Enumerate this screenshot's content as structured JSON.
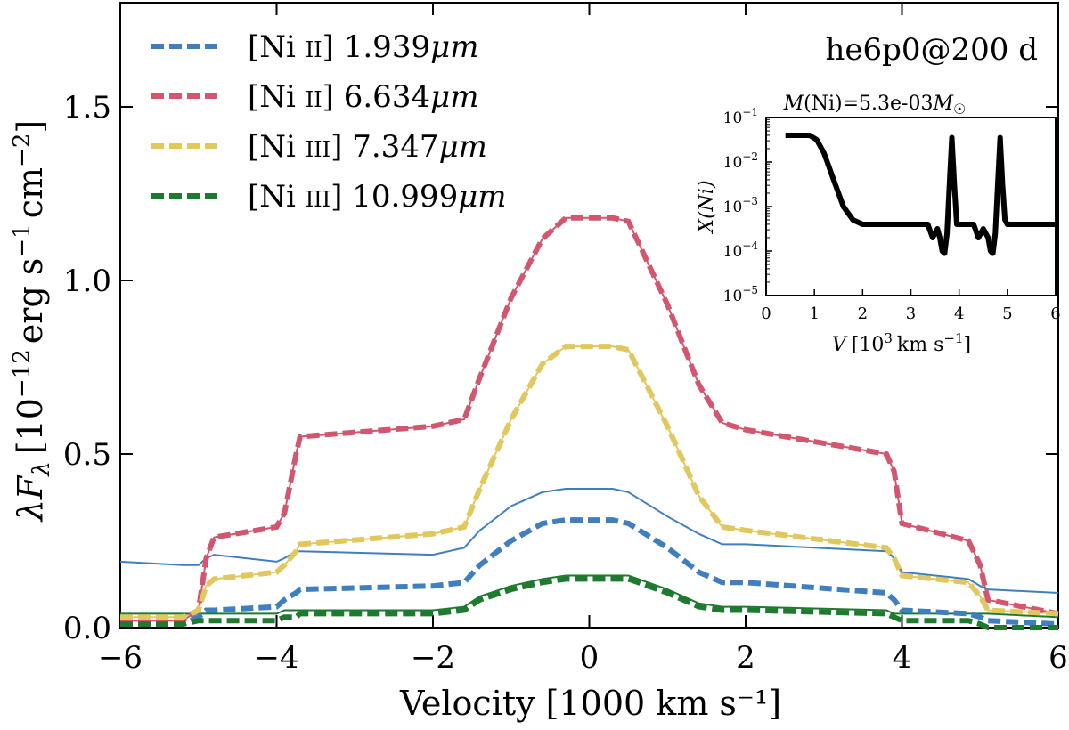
{
  "chart_data": [
    {
      "type": "line",
      "title": "he6p0@200 d",
      "xlabel": "Velocity [1000 km s⁻¹]",
      "ylabel": "λF",
      "ylabel_sub": "λ",
      "ylabel_units": "[10",
      "ylabel_exp1": "−12",
      "ylabel_erg": "erg s",
      "ylabel_exp2": "−1",
      "ylabel_cm": "cm",
      "ylabel_exp3": "−2",
      "ylabel_close": "]",
      "xlim": [
        -6,
        6
      ],
      "ylim": [
        0,
        1.8
      ],
      "xticks": [
        -6,
        -4,
        -2,
        0,
        2,
        4,
        6
      ],
      "xtick_labels": [
        "−6",
        "−4",
        "−2",
        "0",
        "2",
        "4",
        "6"
      ],
      "yticks": [
        0.0,
        0.5,
        1.0,
        1.5
      ],
      "ytick_labels": [
        "0.0",
        "0.5",
        "1.0",
        "1.5"
      ],
      "legend_position": "top-left",
      "series": [
        {
          "name": "[Ni II] 6.634μm",
          "legend_ion": "[Ni",
          "legend_stage": "II",
          "legend_rest": "] 6.634",
          "legend_unit": "μm",
          "color": "#d1566e",
          "x": [
            -6,
            -5.2,
            -5.0,
            -4.9,
            -4.8,
            -4.0,
            -3.9,
            -3.75,
            -3.7,
            -2.0,
            -1.6,
            -1.4,
            -1.0,
            -0.6,
            -0.3,
            0.3,
            0.5,
            1.0,
            1.4,
            1.7,
            2.0,
            3.8,
            3.9,
            4.0,
            4.85,
            5.0,
            5.1,
            6
          ],
          "values": [
            0.02,
            0.02,
            0.05,
            0.2,
            0.26,
            0.29,
            0.33,
            0.5,
            0.55,
            0.58,
            0.6,
            0.72,
            0.95,
            1.12,
            1.18,
            1.18,
            1.17,
            0.93,
            0.7,
            0.59,
            0.57,
            0.5,
            0.45,
            0.3,
            0.25,
            0.18,
            0.08,
            0.04
          ]
        },
        {
          "name": "[Ni III] 7.347μm",
          "legend_ion": "[Ni",
          "legend_stage": "III",
          "legend_rest": "] 7.347",
          "legend_unit": "μm",
          "color": "#e0c85f",
          "x": [
            -6,
            -5.2,
            -5.0,
            -4.9,
            -4.8,
            -4.0,
            -3.9,
            -3.75,
            -3.7,
            -2.0,
            -1.6,
            -1.4,
            -1.0,
            -0.6,
            -0.3,
            0.3,
            0.5,
            1.0,
            1.4,
            1.7,
            2.0,
            3.8,
            3.9,
            4.0,
            4.85,
            5.0,
            5.1,
            6
          ],
          "values": [
            0.03,
            0.03,
            0.05,
            0.12,
            0.14,
            0.16,
            0.18,
            0.22,
            0.24,
            0.27,
            0.29,
            0.4,
            0.6,
            0.76,
            0.81,
            0.81,
            0.8,
            0.58,
            0.38,
            0.29,
            0.28,
            0.23,
            0.2,
            0.15,
            0.13,
            0.09,
            0.05,
            0.04
          ]
        },
        {
          "name": "[Ni II] 1.939μm",
          "legend_ion": "[Ni",
          "legend_stage": "II",
          "legend_rest": "] 1.939",
          "legend_unit": "μm",
          "color": "#3f7fbf",
          "x": [
            -6,
            -5.2,
            -5.0,
            -4.9,
            -4.8,
            -4.0,
            -3.9,
            -3.75,
            -3.7,
            -2.0,
            -1.6,
            -1.4,
            -1.0,
            -0.6,
            -0.3,
            0.3,
            0.5,
            1.0,
            1.4,
            1.7,
            2.0,
            3.8,
            3.9,
            4.0,
            4.85,
            5.0,
            5.1,
            6
          ],
          "values": [
            0.01,
            0.01,
            0.03,
            0.05,
            0.05,
            0.06,
            0.08,
            0.1,
            0.11,
            0.12,
            0.13,
            0.18,
            0.25,
            0.3,
            0.31,
            0.31,
            0.3,
            0.23,
            0.16,
            0.13,
            0.13,
            0.1,
            0.08,
            0.05,
            0.04,
            0.03,
            0.02,
            0.01
          ]
        },
        {
          "name": "[Ni III] 10.999μm",
          "legend_ion": "[Ni",
          "legend_stage": "III",
          "legend_rest": "] 10.999",
          "legend_unit": "μm",
          "color": "#1d7a2e",
          "x": [
            -6,
            -5.2,
            -5.0,
            -4.9,
            -4.8,
            -4.0,
            -3.9,
            -3.75,
            -3.7,
            -2.0,
            -1.6,
            -1.4,
            -1.0,
            -0.6,
            -0.3,
            0.3,
            0.5,
            1.0,
            1.4,
            1.7,
            2.0,
            3.8,
            3.9,
            4.0,
            4.85,
            5.0,
            5.1,
            6
          ],
          "values": [
            0.01,
            0.01,
            0.02,
            0.02,
            0.02,
            0.02,
            0.03,
            0.03,
            0.04,
            0.04,
            0.05,
            0.08,
            0.11,
            0.13,
            0.14,
            0.14,
            0.14,
            0.1,
            0.06,
            0.05,
            0.05,
            0.04,
            0.03,
            0.02,
            0.02,
            0.01,
            0.0,
            0.0
          ]
        }
      ],
      "solid_series": [
        {
          "name": "[Ni II] 1.939μm total",
          "color": "#3f7fbf",
          "x": [
            -6,
            -5.2,
            -5.0,
            -4.9,
            -4.8,
            -4.0,
            -3.9,
            -3.75,
            -3.7,
            -2.0,
            -1.6,
            -1.4,
            -1.0,
            -0.6,
            -0.3,
            0.3,
            0.5,
            1.0,
            1.4,
            1.7,
            2.0,
            3.8,
            3.9,
            4.0,
            4.85,
            5.0,
            5.1,
            6
          ],
          "values": [
            0.19,
            0.18,
            0.18,
            0.2,
            0.21,
            0.19,
            0.2,
            0.22,
            0.22,
            0.21,
            0.23,
            0.28,
            0.35,
            0.39,
            0.4,
            0.4,
            0.39,
            0.32,
            0.27,
            0.24,
            0.24,
            0.22,
            0.2,
            0.16,
            0.14,
            0.12,
            0.11,
            0.1
          ]
        },
        {
          "name": "[Ni III] 10.999μm total",
          "color": "#1d7a2e",
          "x": [
            -6,
            -5.2,
            -5.0,
            -4.9,
            -4.8,
            -4.0,
            -3.9,
            -3.75,
            -3.7,
            -2.0,
            -1.6,
            -1.4,
            -1.0,
            -0.6,
            -0.3,
            0.3,
            0.5,
            1.0,
            1.4,
            1.7,
            2.0,
            3.8,
            3.9,
            4.0,
            4.85,
            5.0,
            5.1,
            6
          ],
          "values": [
            0.04,
            0.04,
            0.04,
            0.04,
            0.04,
            0.04,
            0.05,
            0.05,
            0.05,
            0.05,
            0.06,
            0.09,
            0.12,
            0.14,
            0.15,
            0.15,
            0.15,
            0.11,
            0.07,
            0.06,
            0.06,
            0.05,
            0.04,
            0.04,
            0.04,
            0.04,
            0.04,
            0.03
          ]
        }
      ]
    },
    {
      "type": "line",
      "title_pre": "M",
      "title_post": "(Ni)=5.3e-03",
      "title_msym": "M",
      "title_sun": "☉",
      "xlabel_v": "V",
      "xlabel_units": "[10",
      "xlabel_exp3": "3",
      "xlabel_kms": "km s",
      "xlabel_exp": "−1",
      "xlabel_close": "]",
      "ylabel": "X(Ni)",
      "xlim": [
        0,
        6
      ],
      "ylim_log10": [
        -5,
        -1
      ],
      "xticks": [
        0,
        1,
        2,
        3,
        4,
        5,
        6
      ],
      "xtick_labels": [
        "0",
        "1",
        "2",
        "3",
        "4",
        "5",
        "6"
      ],
      "ytick_exponents": [
        -1,
        -2,
        -3,
        -4,
        -5
      ],
      "ytick_base": "10",
      "ytick_exp_labels": [
        "−1",
        "−2",
        "−3",
        "−4",
        "−5"
      ],
      "series": [
        {
          "name": "X(Ni)",
          "color": "#000000",
          "x": [
            0.4,
            0.9,
            1.05,
            1.2,
            1.4,
            1.6,
            1.8,
            2.0,
            3.35,
            3.45,
            3.55,
            3.6,
            3.65,
            3.7,
            3.75,
            3.8,
            3.85,
            3.9,
            3.95,
            4.0,
            4.3,
            4.4,
            4.5,
            4.6,
            4.65,
            4.7,
            4.75,
            4.8,
            4.85,
            4.9,
            4.95,
            5.0,
            5.1,
            5.2,
            6.0
          ],
          "log10_values": [
            -1.4,
            -1.4,
            -1.5,
            -1.8,
            -2.4,
            -3.0,
            -3.3,
            -3.4,
            -3.4,
            -3.7,
            -3.5,
            -3.7,
            -4.0,
            -4.05,
            -3.6,
            -2.5,
            -1.45,
            -2.5,
            -3.4,
            -3.4,
            -3.4,
            -3.7,
            -3.5,
            -3.7,
            -4.0,
            -4.05,
            -3.6,
            -2.5,
            -1.45,
            -2.5,
            -3.3,
            -3.4,
            -3.4,
            -3.4,
            -3.4
          ]
        }
      ]
    }
  ]
}
